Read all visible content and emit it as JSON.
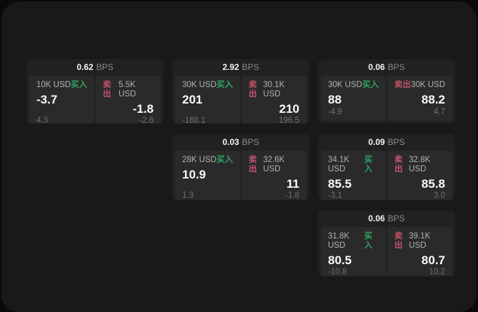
{
  "labels": {
    "bps_unit": "BPS",
    "buy": "买入",
    "sell": "卖出"
  },
  "colors": {
    "background": "#0a0a0b",
    "panel": "#19191a",
    "card": "#212122",
    "subpanel": "#2a2a2b",
    "buy_accent": "#2fa45f",
    "sell_accent": "#c4526a"
  },
  "cards": [
    {
      "bps": "0.62",
      "buy": {
        "size": "10K USD",
        "price": "-3.7",
        "delta": "4.3"
      },
      "sell": {
        "size": "5.5K USD",
        "price": "-1.8",
        "delta": "-2.6"
      }
    },
    {
      "bps": "2.92",
      "buy": {
        "size": "30K USD",
        "price": "201",
        "delta": "-188.1"
      },
      "sell": {
        "size": "30.1K USD",
        "price": "210",
        "delta": "196.5"
      }
    },
    {
      "bps": "0.06",
      "buy": {
        "size": "30K USD",
        "price": "88",
        "delta": "-4.9"
      },
      "sell": {
        "size": "30K USD",
        "price": "88.2",
        "delta": "4.7"
      }
    },
    {
      "bps": "0.03",
      "buy": {
        "size": "28K USD",
        "price": "10.9",
        "delta": "1.3"
      },
      "sell": {
        "size": "32.6K USD",
        "price": "11",
        "delta": "-1.8"
      }
    },
    {
      "bps": "0.09",
      "buy": {
        "size": "34.1K USD",
        "price": "85.5",
        "delta": "-3.1"
      },
      "sell": {
        "size": "32.8K USD",
        "price": "85.8",
        "delta": "3.0"
      }
    },
    {
      "bps": "0.06",
      "buy": {
        "size": "31.8K USD",
        "price": "80.5",
        "delta": "-10.8"
      },
      "sell": {
        "size": "39.1K USD",
        "price": "80.7",
        "delta": "10.2"
      }
    }
  ]
}
